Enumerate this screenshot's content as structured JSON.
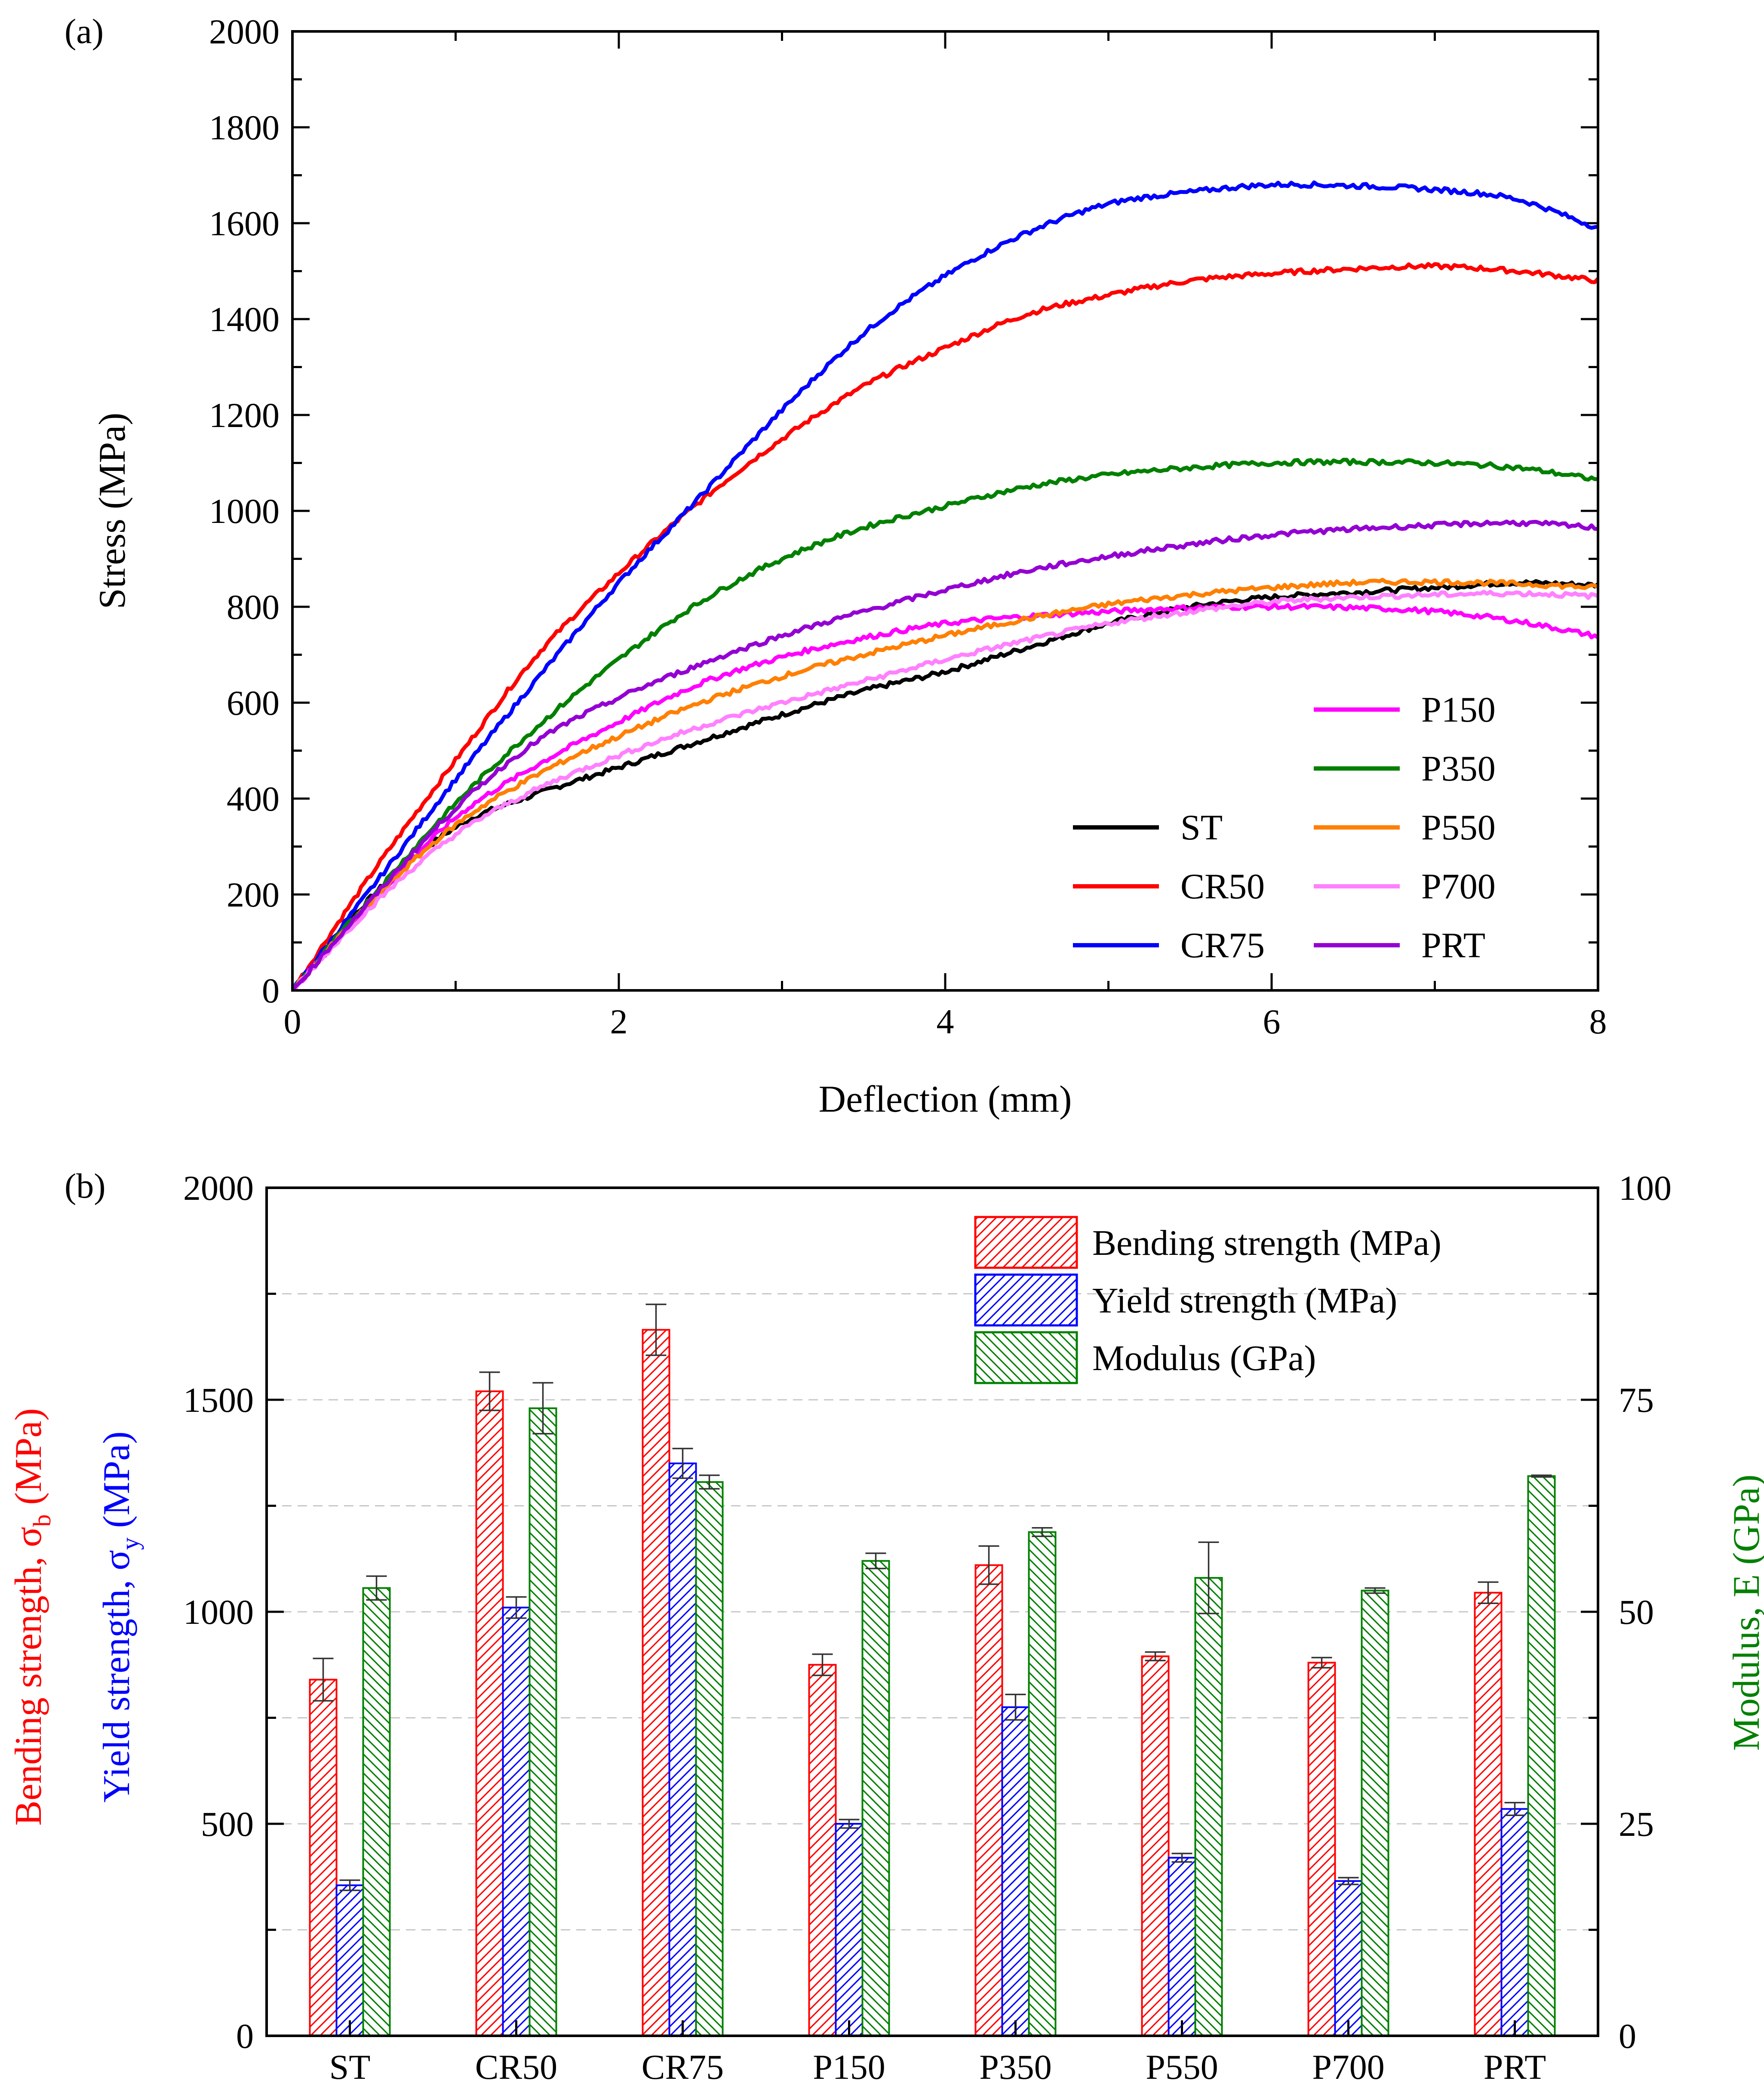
{
  "chart_data": [
    {
      "type": "line",
      "panel_label": "(a)",
      "xlabel": "Deflection (mm)",
      "ylabel": "Stress (MPa)",
      "xlim": [
        0,
        8
      ],
      "ylim": [
        0,
        2000
      ],
      "xticks": [
        0,
        2,
        4,
        6,
        8
      ],
      "yticks": [
        0,
        200,
        400,
        600,
        800,
        1000,
        1200,
        1400,
        1600,
        1800,
        2000
      ],
      "legend_position": "bottom-right",
      "series": [
        {
          "name": "ST",
          "color": "#000000",
          "x": [
            0,
            0.5,
            1,
            1.5,
            2,
            2.5,
            3,
            3.5,
            4,
            4.5,
            5,
            5.5,
            6,
            6.5,
            7,
            7.5,
            8
          ],
          "y": [
            0,
            200,
            340,
            410,
            465,
            520,
            575,
            625,
            665,
            715,
            765,
            800,
            820,
            830,
            840,
            850,
            845
          ]
        },
        {
          "name": "CR50",
          "color": "#ff0000",
          "x": [
            0,
            0.5,
            1,
            1.5,
            2,
            2.5,
            3,
            3.5,
            4,
            4.5,
            5,
            5.5,
            6,
            6.5,
            7,
            7.5,
            8
          ],
          "y": [
            0,
            250,
            480,
            700,
            870,
            1020,
            1150,
            1260,
            1340,
            1410,
            1450,
            1480,
            1495,
            1505,
            1510,
            1500,
            1480
          ]
        },
        {
          "name": "CR75",
          "color": "#0000ff",
          "x": [
            0,
            0.5,
            1,
            1.5,
            2,
            2.5,
            3,
            3.5,
            4,
            4.5,
            5,
            5.5,
            6,
            6.5,
            7,
            7.5,
            8
          ],
          "y": [
            0,
            220,
            440,
            650,
            850,
            1030,
            1210,
            1370,
            1490,
            1580,
            1640,
            1665,
            1680,
            1678,
            1670,
            1650,
            1590
          ]
        },
        {
          "name": "P150",
          "color": "#ff00ff",
          "x": [
            0,
            0.5,
            1,
            1.5,
            2,
            2.5,
            3,
            3.5,
            4,
            4.5,
            5,
            5.5,
            6,
            6.5,
            7,
            7.5,
            8
          ],
          "y": [
            0,
            190,
            360,
            470,
            560,
            640,
            695,
            735,
            765,
            780,
            790,
            798,
            800,
            798,
            790,
            770,
            738
          ]
        },
        {
          "name": "P350",
          "color": "#008000",
          "x": [
            0,
            0.5,
            1,
            1.5,
            2,
            2.5,
            3,
            3.5,
            4,
            4.5,
            5,
            5.5,
            6,
            6.5,
            7,
            7.5,
            8
          ],
          "y": [
            0,
            200,
            390,
            550,
            690,
            810,
            900,
            965,
            1010,
            1050,
            1075,
            1090,
            1100,
            1102,
            1100,
            1090,
            1065
          ]
        },
        {
          "name": "P550",
          "color": "#ff7f00",
          "x": [
            0,
            0.5,
            1,
            1.5,
            2,
            2.5,
            3,
            3.5,
            4,
            4.5,
            5,
            5.5,
            6,
            6.5,
            7,
            7.5,
            8
          ],
          "y": [
            0,
            190,
            345,
            450,
            530,
            600,
            655,
            700,
            740,
            775,
            805,
            825,
            840,
            850,
            852,
            848,
            840
          ]
        },
        {
          "name": "P700",
          "color": "#ff80ff",
          "x": [
            0,
            0.5,
            1,
            1.5,
            2,
            2.5,
            3,
            3.5,
            4,
            4.5,
            5,
            5.5,
            6,
            6.5,
            7,
            7.5,
            8
          ],
          "y": [
            0,
            180,
            325,
            420,
            490,
            550,
            600,
            645,
            690,
            730,
            765,
            790,
            810,
            820,
            825,
            828,
            822
          ]
        },
        {
          "name": "PRT",
          "color": "#9400d3",
          "x": [
            0,
            0.5,
            1,
            1.5,
            2,
            2.5,
            3,
            3.5,
            4,
            4.5,
            5,
            5.5,
            6,
            6.5,
            7,
            7.5,
            8
          ],
          "y": [
            0,
            195,
            380,
            520,
            610,
            680,
            740,
            790,
            835,
            875,
            905,
            930,
            950,
            962,
            970,
            975,
            965
          ]
        }
      ],
      "legend_columns": [
        [
          "ST",
          "CR50",
          "CR75"
        ],
        [
          "P150",
          "P350",
          "P550",
          "P700",
          "PRT"
        ]
      ]
    },
    {
      "type": "bar",
      "panel_label": "(b)",
      "categories": [
        "ST",
        "CR50",
        "CR75",
        "P150",
        "P350",
        "P550",
        "P700",
        "PRT"
      ],
      "ylabel_left_line1": "Bending strength, σ",
      "ylabel_left_line1_sub": "b",
      "ylabel_left_line1_unit": " (MPa)",
      "ylabel_left_line2": "Yield strength, σ",
      "ylabel_left_line2_sub": "y",
      "ylabel_left_line2_unit": " (MPa)",
      "ylabel_right": "Modulus, E (GPa)",
      "ylim_left": [
        0,
        2000
      ],
      "ylim_right": [
        0,
        100
      ],
      "yticks_left": [
        0,
        500,
        1000,
        1500,
        2000
      ],
      "yticks_right": [
        0,
        25,
        50,
        75,
        100
      ],
      "legend_position": "top-right",
      "series": [
        {
          "name": "Bending strength (MPa)",
          "axis": "left",
          "color": "#ff0000",
          "hatch": "/",
          "values": [
            840,
            1520,
            1665,
            875,
            1110,
            895,
            880,
            1045
          ],
          "errors": [
            50,
            45,
            60,
            25,
            45,
            10,
            12,
            25
          ]
        },
        {
          "name": "Yield strength (MPa)",
          "axis": "left",
          "color": "#0000ff",
          "hatch": "/",
          "values": [
            355,
            1010,
            1350,
            500,
            775,
            420,
            365,
            535
          ],
          "errors": [
            12,
            25,
            35,
            10,
            30,
            10,
            8,
            15
          ]
        },
        {
          "name": "Modulus (GPa)",
          "axis": "right",
          "color": "#008000",
          "hatch": "\\",
          "values": [
            52.8,
            74,
            65.3,
            56,
            59.4,
            54,
            52.5,
            66
          ],
          "errors": [
            1.4,
            3,
            0.8,
            0.9,
            0.5,
            4.2,
            0.3,
            0.1
          ]
        }
      ]
    }
  ]
}
